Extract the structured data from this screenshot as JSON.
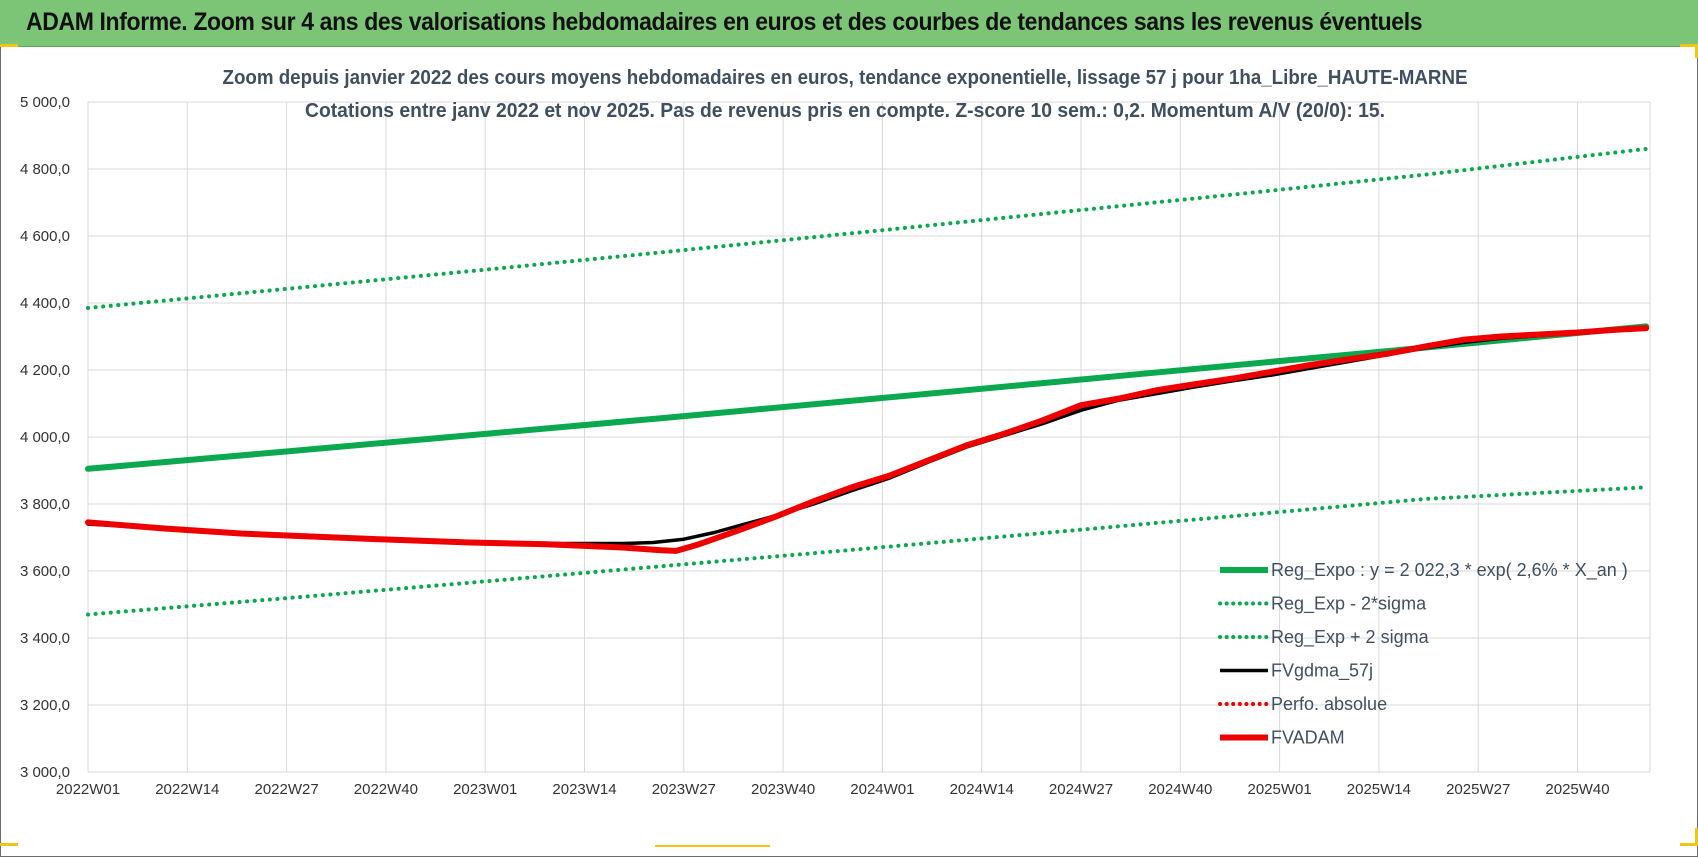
{
  "banner": {
    "title": "ADAM Informe. Zoom sur 4 ans des valorisations hebdomadaires en euros et des courbes de tendances sans les revenus éventuels"
  },
  "colors": {
    "banner_bg": "#7cc576",
    "accent_yellow": "#f0c419",
    "trend_green": "#0aa84f",
    "series_black": "#000000",
    "series_red": "#ee0000",
    "grid": "#d9d9d9"
  },
  "chart_data": {
    "type": "line",
    "title_line1": "Zoom depuis janvier 2022 des cours moyens hebdomadaires en euros, tendance exponentielle, lissage 57 j pour 1ha_Libre_HAUTE-MARNE",
    "title_line2": "Cotations entre janv 2022 et nov 2025. Pas de revenus pris en compte. Z-score 10 sem.: 0,2. Momentum A/V (20/0): 15.",
    "xlabel": "",
    "ylabel": "",
    "ylim": [
      3000,
      5000
    ],
    "yticks": [
      3000,
      3200,
      3400,
      3600,
      3800,
      4000,
      4200,
      4400,
      4600,
      4800,
      5000
    ],
    "ytick_labels": [
      "3 000,0",
      "3 200,0",
      "3 400,0",
      "3 600,0",
      "3 800,0",
      "4 000,0",
      "4 200,0",
      "4 400,0",
      "4 600,0",
      "4 800,0",
      "5 000,0"
    ],
    "xlim": [
      0,
      203
    ],
    "xticks": [
      0,
      13,
      26,
      39,
      52,
      65,
      78,
      91,
      104,
      117,
      130,
      143,
      156,
      169,
      182,
      195
    ],
    "xtick_labels": [
      "2022W01",
      "2022W14",
      "2022W27",
      "2022W40",
      "2023W01",
      "2023W14",
      "2023W27",
      "2023W40",
      "2024W01",
      "2024W14",
      "2024W27",
      "2024W40",
      "2025W01",
      "2025W14",
      "2025W27",
      "2025W40"
    ],
    "grid": true,
    "legend_position": "bottom-right",
    "series": [
      {
        "name": "Reg_Expo : y = 2 022,3 * exp( 2,6% *  X_an )",
        "style": "solid-thick",
        "color": "#0aa84f",
        "x": [
          0,
          25,
          50,
          75,
          100,
          125,
          150,
          175,
          204
        ],
        "values": [
          3905,
          3955,
          4005,
          4056,
          4108,
          4161,
          4214,
          4267,
          4330
        ]
      },
      {
        "name": "Reg_Exp - 2*sigma",
        "style": "dotted",
        "color": "#0aa84f",
        "x": [
          0,
          25,
          50,
          75,
          100,
          125,
          150,
          175,
          204
        ],
        "values": [
          3470,
          3517,
          3565,
          3614,
          3663,
          3713,
          3764,
          3815,
          3850
        ]
      },
      {
        "name": "Reg_Exp + 2 sigma",
        "style": "dotted",
        "color": "#0aa84f",
        "x": [
          0,
          25,
          50,
          75,
          100,
          125,
          150,
          175,
          204
        ],
        "values": [
          4385,
          4440,
          4495,
          4551,
          4608,
          4666,
          4724,
          4783,
          4860
        ]
      },
      {
        "name": "FVgdma_57j",
        "style": "solid",
        "color": "#000000",
        "x": [
          0,
          10,
          20,
          30,
          40,
          50,
          60,
          70,
          74,
          78,
          82,
          86,
          90,
          95,
          100,
          105,
          110,
          115,
          120,
          125,
          130,
          135,
          140,
          145,
          150,
          155,
          160,
          165,
          170,
          175,
          180,
          185,
          190,
          195,
          200,
          204
        ],
        "values": [
          3740,
          3728,
          3714,
          3703,
          3694,
          3686,
          3682,
          3682,
          3685,
          3695,
          3715,
          3740,
          3765,
          3800,
          3840,
          3878,
          3925,
          3970,
          4005,
          4040,
          4080,
          4110,
          4130,
          4150,
          4168,
          4185,
          4205,
          4225,
          4245,
          4265,
          4282,
          4295,
          4302,
          4310,
          4318,
          4325
        ]
      },
      {
        "name": "Perfo. absolue",
        "style": "dotted",
        "color": "#ee0000",
        "x": [],
        "values": []
      },
      {
        "name": "FVADAM",
        "style": "solid-thick",
        "color": "#ee0000",
        "x": [
          0,
          10,
          20,
          30,
          40,
          50,
          60,
          65,
          70,
          75,
          77,
          80,
          85,
          90,
          95,
          100,
          105,
          110,
          115,
          120,
          125,
          130,
          135,
          140,
          145,
          150,
          155,
          160,
          165,
          170,
          175,
          180,
          185,
          190,
          195,
          200,
          204
        ],
        "values": [
          3745,
          3727,
          3712,
          3702,
          3693,
          3685,
          3680,
          3675,
          3670,
          3662,
          3660,
          3680,
          3720,
          3762,
          3808,
          3850,
          3885,
          3930,
          3975,
          4010,
          4050,
          4095,
          4115,
          4140,
          4158,
          4175,
          4195,
          4215,
          4232,
          4248,
          4270,
          4290,
          4300,
          4306,
          4312,
          4320,
          4325
        ]
      }
    ]
  }
}
